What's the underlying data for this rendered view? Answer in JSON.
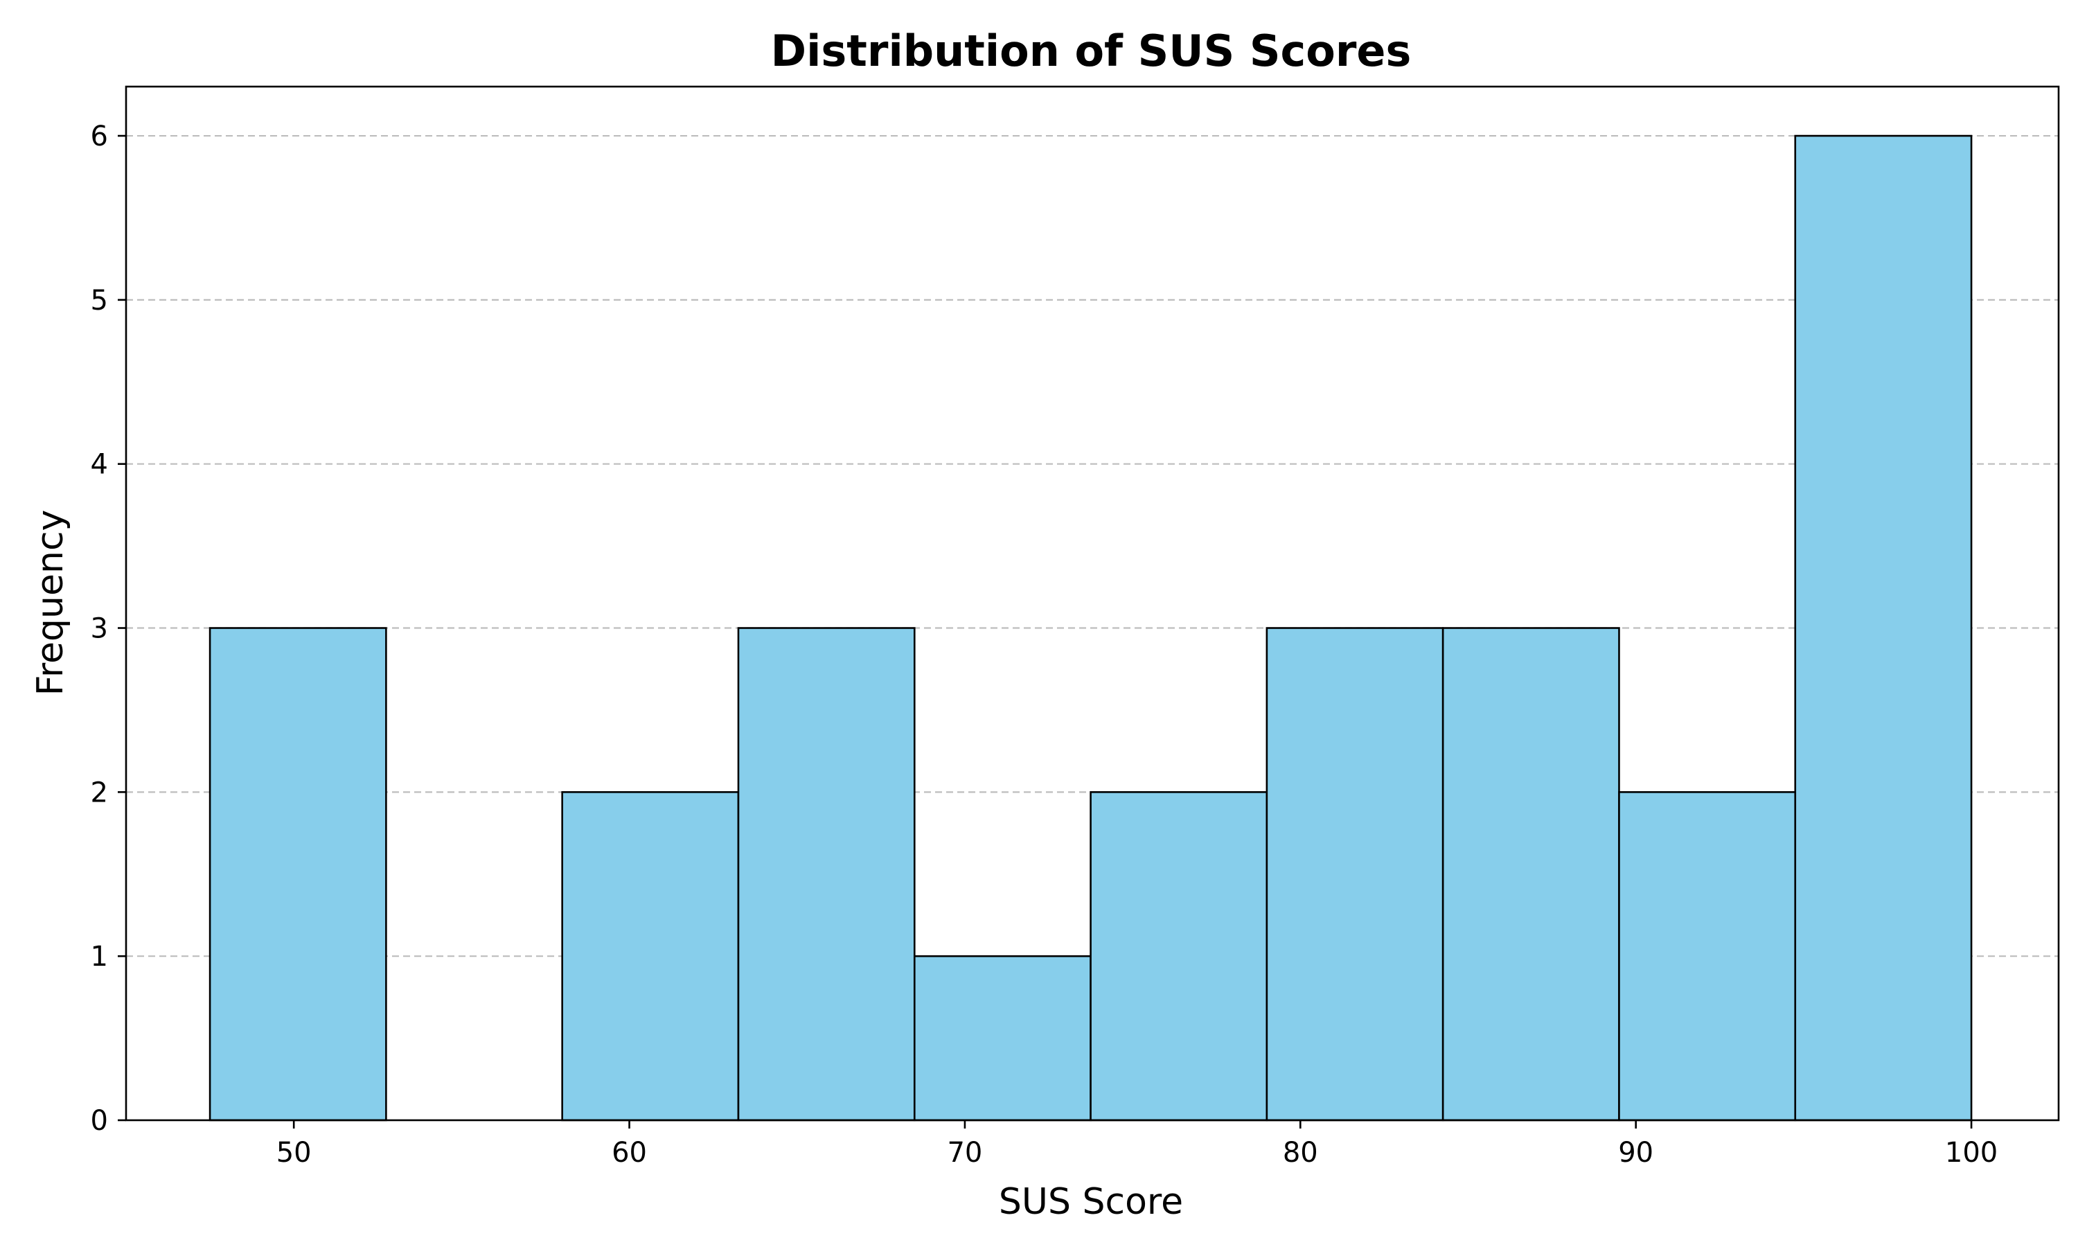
{
  "chart_data": {
    "type": "bar",
    "title": "Distribution of SUS Scores",
    "xlabel": "SUS Score",
    "ylabel": "Frequency",
    "bin_edges": [
      47.5,
      52.75,
      58.0,
      63.25,
      68.5,
      73.75,
      79.0,
      84.25,
      89.5,
      94.75,
      100.0
    ],
    "values": [
      3,
      0,
      2,
      3,
      1,
      2,
      3,
      3,
      2,
      6
    ],
    "xlim": [
      45,
      102.6
    ],
    "ylim": [
      0,
      6.3
    ],
    "xticks": [
      50,
      60,
      70,
      80,
      90,
      100
    ],
    "yticks": [
      0,
      1,
      2,
      3,
      4,
      5,
      6
    ],
    "bar_color": "#87CEEB",
    "grid": "y-dashed",
    "legend": "none"
  }
}
